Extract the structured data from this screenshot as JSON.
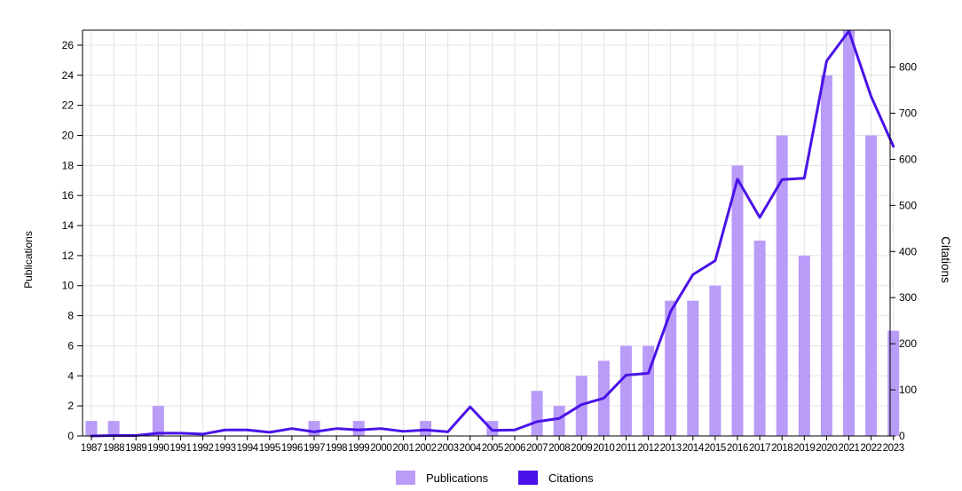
{
  "chart_data": {
    "type": "bar",
    "title": "",
    "xlabel": "",
    "ylabel": "Publications",
    "y2label": "Citations",
    "categories": [
      "1987",
      "1988",
      "1989",
      "1990",
      "1991",
      "1992",
      "1993",
      "1994",
      "1995",
      "1996",
      "1997",
      "1998",
      "1999",
      "2000",
      "2001",
      "2002",
      "2003",
      "2004",
      "2005",
      "2006",
      "2007",
      "2008",
      "2009",
      "2010",
      "2011",
      "2012",
      "2013",
      "2014",
      "2015",
      "2016",
      "2017",
      "2018",
      "2019",
      "2020",
      "2021",
      "2022",
      "2023"
    ],
    "ylim": [
      0,
      27
    ],
    "y2lim": [
      0,
      880
    ],
    "yticks": [
      0,
      2,
      4,
      6,
      8,
      10,
      12,
      14,
      16,
      18,
      20,
      22,
      24,
      26
    ],
    "y2ticks": [
      0,
      100,
      200,
      300,
      400,
      500,
      600,
      700,
      800
    ],
    "grid": true,
    "legend_position": "bottom",
    "series": [
      {
        "name": "Publications",
        "type": "bar",
        "axis": "left",
        "color": "#b99cf7",
        "values": [
          1,
          1,
          0,
          2,
          0,
          0,
          0,
          0,
          0,
          0,
          1,
          0,
          1,
          0,
          0,
          1,
          0,
          0,
          1,
          0,
          3,
          2,
          4,
          5,
          6,
          6,
          9,
          9,
          10,
          18,
          13,
          20,
          12,
          24,
          27,
          20,
          7
        ]
      },
      {
        "name": "Citations",
        "type": "line",
        "axis": "right",
        "color": "#4a12e8",
        "values": [
          0,
          1,
          1,
          6,
          6,
          4,
          13,
          13,
          8,
          16,
          9,
          16,
          13,
          16,
          10,
          13,
          9,
          63,
          12,
          13,
          31,
          38,
          68,
          82,
          132,
          136,
          270,
          350,
          380,
          557,
          474,
          556,
          559,
          813,
          878,
          736,
          628
        ]
      }
    ]
  }
}
